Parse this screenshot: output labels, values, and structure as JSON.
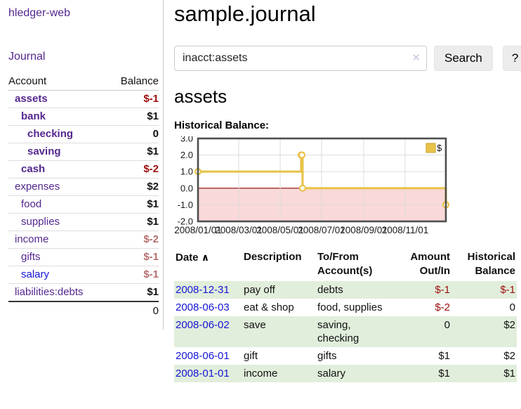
{
  "colors": {
    "accent-purple": "#54278e",
    "link-blue": "#1515d6",
    "neg-strong": "#9c0d0d",
    "neg-muted": "#b66f6f",
    "row-green": "#e1eedb",
    "button-bg": "#ececec",
    "divider": "#cccccc"
  },
  "sidebar": {
    "brand": "hledger-web",
    "journal_link": "Journal",
    "headers": {
      "account": "Account",
      "balance": "Balance"
    },
    "accounts": [
      {
        "name": "assets",
        "indent": 1,
        "balance": "$-1",
        "bold": true,
        "tone": "neg-strong",
        "link": "purple"
      },
      {
        "name": "bank",
        "indent": 2,
        "balance": "$1",
        "bold": true,
        "tone": "normal",
        "link": "purple"
      },
      {
        "name": "checking",
        "indent": 3,
        "balance": "0",
        "bold": true,
        "tone": "normal",
        "link": "purple"
      },
      {
        "name": "saving",
        "indent": 3,
        "balance": "$1",
        "bold": true,
        "tone": "normal",
        "link": "purple"
      },
      {
        "name": "cash",
        "indent": 2,
        "balance": "$-2",
        "bold": true,
        "tone": "neg-strong",
        "link": "purple"
      },
      {
        "name": "expenses",
        "indent": 1,
        "balance": "$2",
        "bold": false,
        "tone": "normal",
        "link": "purple"
      },
      {
        "name": "food",
        "indent": 2,
        "balance": "$1",
        "bold": false,
        "tone": "normal",
        "link": "purple"
      },
      {
        "name": "supplies",
        "indent": 2,
        "balance": "$1",
        "bold": false,
        "tone": "normal",
        "link": "purple"
      },
      {
        "name": "income",
        "indent": 1,
        "balance": "$-2",
        "bold": false,
        "tone": "neg-muted",
        "link": "purple"
      },
      {
        "name": "gifts",
        "indent": 2,
        "balance": "$-1",
        "bold": false,
        "tone": "neg-muted",
        "link": "purple"
      },
      {
        "name": "salary",
        "indent": 2,
        "balance": "$-1",
        "bold": false,
        "tone": "neg-muted",
        "link": "blue"
      },
      {
        "name": "liabilities:debts",
        "indent": 1,
        "balance": "$1",
        "bold": false,
        "tone": "normal",
        "link": "purple"
      }
    ],
    "total": "0"
  },
  "main": {
    "title": "sample.journal",
    "search": {
      "value": "inacct:assets",
      "clear_icon": "✕",
      "search_label": "Search",
      "help_label": "?"
    },
    "account_heading": "assets",
    "chart_title": "Historical Balance:"
  },
  "chart_data": {
    "type": "line",
    "title": "Historical Balance:",
    "step": true,
    "series": [
      {
        "name": "$",
        "color": "#e8c34a",
        "points": [
          [
            "2008-01-01",
            1
          ],
          [
            "2008-06-01",
            2
          ],
          [
            "2008-06-02",
            2
          ],
          [
            "2008-06-03",
            0
          ],
          [
            "2008-12-31",
            -1
          ]
        ]
      }
    ],
    "x_domain": [
      "2008-01-01",
      "2008-12-31"
    ],
    "x_ticks": [
      "2008/01/01",
      "2008/03/01",
      "2008/05/01",
      "2008/07/01",
      "2008/09/01",
      "2008/11/01"
    ],
    "y_ticks": [
      3,
      2,
      1,
      0,
      -1,
      -2
    ],
    "ylim": [
      -2,
      3
    ],
    "legend_position": "top-right",
    "grid": true,
    "negative_fill": "#f9d9d9",
    "zero_line_color": "#8b0000",
    "border_color": "#4e4e4e",
    "grid_color": "#dcdcdc",
    "marker_fill": "#ffffff"
  },
  "register": {
    "headers": {
      "date": "Date",
      "sort_icon": "∧",
      "description": "Description",
      "accounts": "To/From Account(s)",
      "amount": "Amount Out/In",
      "balance": "Historical Balance"
    },
    "rows": [
      {
        "date": "2008-12-31",
        "description": "pay off",
        "accounts": "debts",
        "amount": "$-1",
        "amount_tone": "neg-strong",
        "balance": "$-1",
        "balance_tone": "neg-strong"
      },
      {
        "date": "2008-06-03",
        "description": "eat & shop",
        "accounts": "food, supplies",
        "amount": "$-2",
        "amount_tone": "neg-strong",
        "balance": "0",
        "balance_tone": "normal"
      },
      {
        "date": "2008-06-02",
        "description": "save",
        "accounts": "saving, checking",
        "amount": "0",
        "amount_tone": "normal",
        "balance": "$2",
        "balance_tone": "normal"
      },
      {
        "date": "2008-06-01",
        "description": "gift",
        "accounts": "gifts",
        "amount": "$1",
        "amount_tone": "normal",
        "balance": "$2",
        "balance_tone": "normal"
      },
      {
        "date": "2008-01-01",
        "description": "income",
        "accounts": "salary",
        "amount": "$1",
        "amount_tone": "normal",
        "balance": "$1",
        "balance_tone": "normal"
      }
    ]
  }
}
